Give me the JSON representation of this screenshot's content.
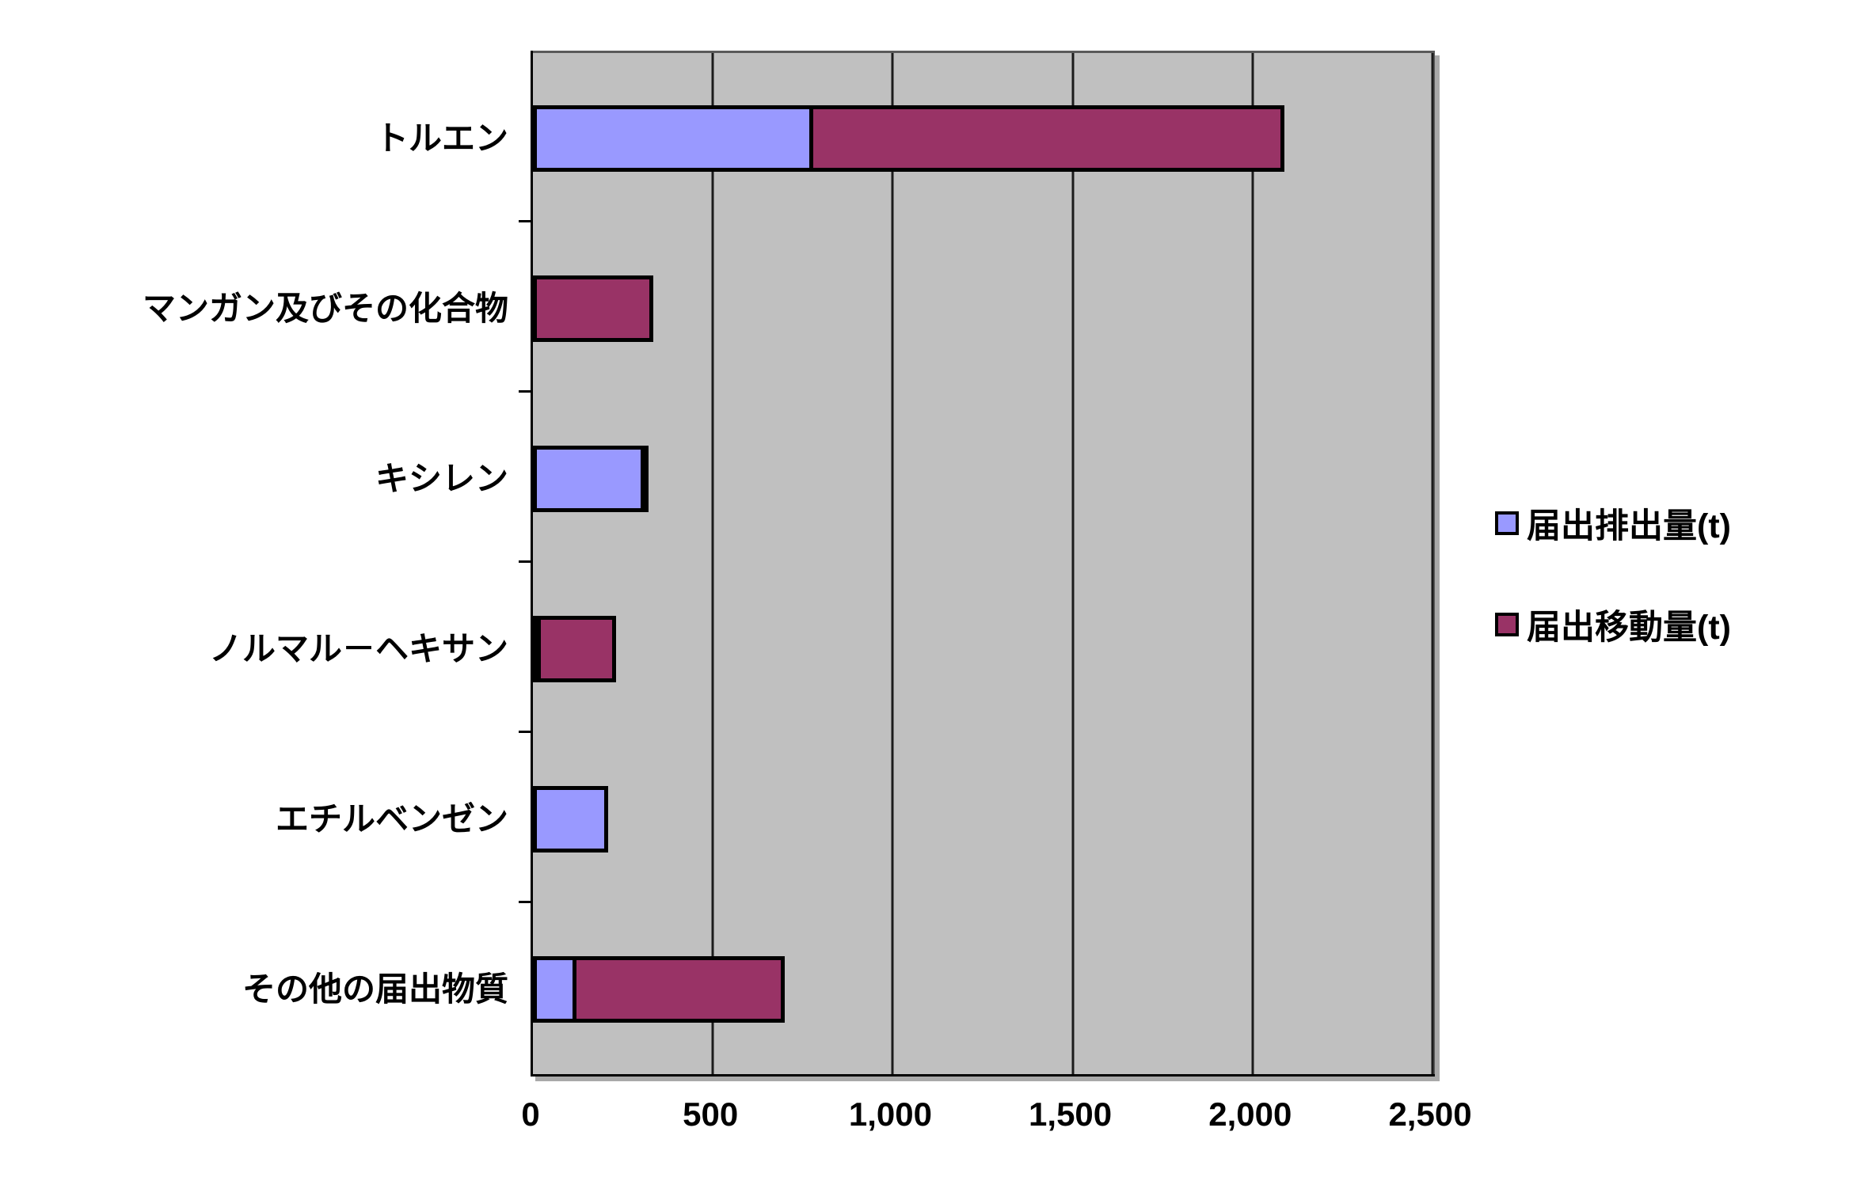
{
  "chart_data": {
    "type": "bar",
    "orientation": "horizontal",
    "stacked": true,
    "title": "",
    "xlabel": "",
    "ylabel": "",
    "categories": [
      "トルエン",
      "マンガン及びその化合物",
      "キシレン",
      "ノルマル－ヘキサン",
      "エチルベンゼン",
      "その他の届出物質"
    ],
    "series": [
      {
        "name": "届出排出量(t)",
        "color": "#9999ff",
        "values": [
          780,
          0,
          310,
          15,
          210,
          120
        ]
      },
      {
        "name": "届出移動量(t)",
        "color": "#993366",
        "values": [
          1320,
          335,
          10,
          220,
          0,
          590
        ]
      }
    ],
    "xlim": [
      0,
      2500
    ],
    "x_ticks": [
      0,
      500,
      1000,
      1500,
      2000,
      2500
    ],
    "x_tick_labels": [
      "0",
      "500",
      "1,000",
      "1,500",
      "2,000",
      "2,500"
    ],
    "grid": true,
    "gridline_color": "#1c1c1c",
    "plot_bg": "#c0c0c0",
    "legend_position": "right"
  }
}
